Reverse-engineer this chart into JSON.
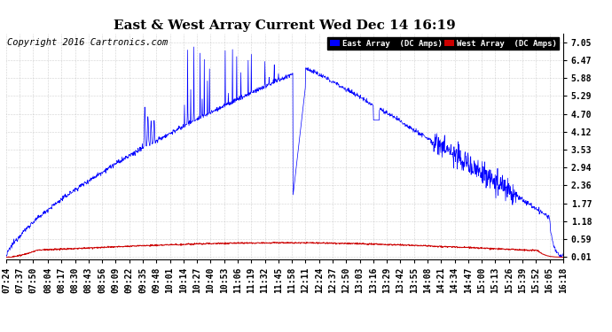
{
  "title": "East & West Array Current Wed Dec 14 16:19",
  "copyright": "Copyright 2016 Cartronics.com",
  "legend_east": "East Array  (DC Amps)",
  "legend_west": "West Array  (DC Amps)",
  "east_color": "#0000ff",
  "west_color": "#cc0000",
  "background_color": "#ffffff",
  "grid_color": "#aaaaaa",
  "yticks": [
    0.01,
    0.59,
    1.18,
    1.77,
    2.36,
    2.94,
    3.53,
    4.12,
    4.7,
    5.29,
    5.88,
    6.47,
    7.05
  ],
  "ylim": [
    -0.05,
    7.35
  ],
  "title_fontsize": 11,
  "tick_fontsize": 7,
  "copyright_fontsize": 7.5,
  "tick_times": [
    "07:24",
    "07:37",
    "07:50",
    "08:04",
    "08:17",
    "08:30",
    "08:43",
    "08:56",
    "09:09",
    "09:22",
    "09:35",
    "09:48",
    "10:01",
    "10:14",
    "10:27",
    "10:40",
    "10:53",
    "11:06",
    "11:19",
    "11:32",
    "11:45",
    "11:58",
    "12:11",
    "12:24",
    "12:37",
    "12:50",
    "13:03",
    "13:16",
    "13:29",
    "13:42",
    "13:55",
    "14:08",
    "14:21",
    "14:34",
    "14:47",
    "15:00",
    "15:13",
    "15:26",
    "15:39",
    "15:52",
    "16:05",
    "16:18"
  ]
}
